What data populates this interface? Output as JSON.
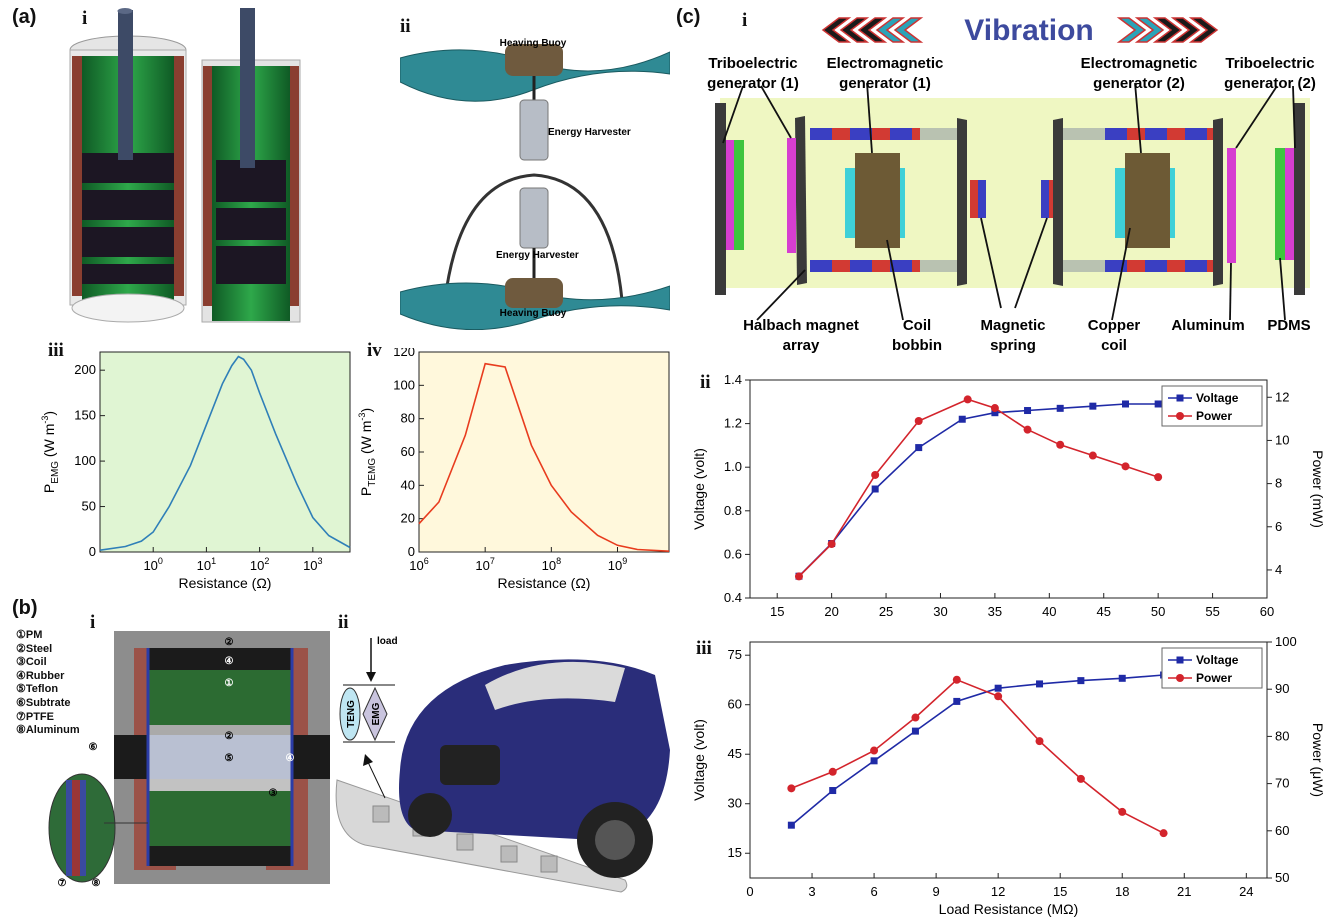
{
  "panels": {
    "a": "(a)",
    "b": "(b)",
    "c": "(c)"
  },
  "subs": {
    "a_i": "i",
    "a_ii": "ii",
    "a_iii": "iii",
    "a_iv": "iv",
    "b_i": "i",
    "b_ii": "ii",
    "c_i": "i",
    "c_ii": "ii",
    "c_iii": "iii"
  },
  "a_ii": {
    "buoy_top": "Heaving Buoy",
    "harv1": "Energy Harvester",
    "harv2": "Energy Harvester",
    "buoy_bottom": "Heaving Buoy"
  },
  "b_legend": [
    "①PM",
    "②Steel",
    "③Coil",
    "④Rubber",
    "⑤Teflon",
    "⑥Subtrate",
    "⑦PTFE",
    "⑧Aluminum"
  ],
  "b_marks": [
    "②",
    "④",
    "①",
    "②",
    "⑤",
    "④",
    "③",
    "⑥",
    "⑦",
    "⑧"
  ],
  "b_ii": {
    "load": "load",
    "teng": "TENG",
    "emg": "EMG"
  },
  "c_i": {
    "vibration": "Vibration",
    "tri1": [
      "Triboelectric",
      "generator (1)"
    ],
    "em1": [
      "Electromagnetic",
      "generator (1)"
    ],
    "em2": [
      "Electromagnetic",
      "generator (2)"
    ],
    "tri2": [
      "Triboelectric",
      "generator (2)"
    ],
    "halbach": [
      "Halbach magnet",
      "array"
    ],
    "bobbin": [
      "Coil",
      "bobbin"
    ],
    "mspring": [
      "Magnetic",
      "spring"
    ],
    "copper": [
      "Copper",
      "coil"
    ],
    "aluminum": "Aluminum",
    "pdms": "PDMS"
  },
  "colors": {
    "emg_bg": "#e0f5d3",
    "temg_bg": "#fff8dc",
    "emg_line": "#2f7fb8",
    "temg_line": "#e83c1e",
    "voltage": "#1f2aa6",
    "power": "#d3242c",
    "ci_bg": "#f1f8c8"
  },
  "chart_data": [
    {
      "id": "a_iii",
      "type": "line",
      "x_scale": "log",
      "ylabel_main": "P",
      "ylabel_sub": "EMG",
      "ylabel_unit": "(W m",
      "ylabel_exp": "-3",
      "ylabel_close": ")",
      "xlabel": "Resistance (Ω)",
      "xlim": [
        0.1,
        5000
      ],
      "ylim": [
        0,
        220
      ],
      "xticks": [
        {
          "v": 1,
          "b": "10",
          "e": "0"
        },
        {
          "v": 10,
          "b": "10",
          "e": "1"
        },
        {
          "v": 100,
          "b": "10",
          "e": "2"
        },
        {
          "v": 1000,
          "b": "10",
          "e": "3"
        }
      ],
      "yticks": [
        "0",
        "50",
        "100",
        "150",
        "200"
      ],
      "x": [
        0.1,
        0.3,
        0.6,
        1,
        2,
        5,
        10,
        20,
        30,
        40,
        50,
        70,
        100,
        200,
        500,
        1000,
        2000,
        5000
      ],
      "y": [
        2,
        6,
        12,
        22,
        50,
        95,
        140,
        185,
        205,
        215,
        212,
        200,
        175,
        130,
        75,
        38,
        18,
        5
      ]
    },
    {
      "id": "a_iv",
      "type": "line",
      "x_scale": "log",
      "ylabel_main": "P",
      "ylabel_sub": "TEMG",
      "ylabel_unit": "(W m",
      "ylabel_exp": "-3",
      "ylabel_close": ")",
      "xlabel": "Resistance (Ω)",
      "xlim": [
        1000000,
        6000000000
      ],
      "ylim": [
        0,
        120
      ],
      "xticks": [
        {
          "v": 1000000,
          "b": "10",
          "e": "6"
        },
        {
          "v": 10000000,
          "b": "10",
          "e": "7"
        },
        {
          "v": 100000000,
          "b": "10",
          "e": "8"
        },
        {
          "v": 1000000000,
          "b": "10",
          "e": "9"
        }
      ],
      "yticks": [
        "0",
        "20",
        "40",
        "60",
        "80",
        "100",
        "120"
      ],
      "x": [
        1000000,
        2000000,
        5000000,
        10000000,
        20000000,
        50000000,
        100000000,
        200000000,
        500000000,
        1000000000,
        2000000000,
        6000000000
      ],
      "y": [
        17,
        30,
        70,
        113,
        111,
        64,
        40,
        24,
        10,
        4,
        1.5,
        0.5
      ]
    },
    {
      "id": "c_ii",
      "type": "line",
      "dual_axis": true,
      "xlabel": "",
      "ylabel": "Voltage (volt)",
      "y2label": "Power (mW)",
      "xlim": [
        12.5,
        60
      ],
      "ylim": [
        0.4,
        1.4
      ],
      "y2lim": [
        2.7,
        12.8
      ],
      "xticks": [
        "15",
        "20",
        "25",
        "30",
        "35",
        "40",
        "45",
        "50",
        "55",
        "60"
      ],
      "yticks": [
        "0.4",
        "0.6",
        "0.8",
        "1.0",
        "1.2",
        "1.4"
      ],
      "y2ticks": [
        "4",
        "6",
        "8",
        "10",
        "12"
      ],
      "series": [
        {
          "name": "Voltage",
          "axis": "left",
          "x": [
            17,
            20,
            24,
            28,
            32,
            35,
            38,
            41,
            44,
            47,
            50
          ],
          "y": [
            0.5,
            0.65,
            0.9,
            1.09,
            1.22,
            1.25,
            1.26,
            1.27,
            1.28,
            1.29,
            1.29
          ]
        },
        {
          "name": "Power",
          "axis": "right",
          "x": [
            17,
            20,
            24,
            28,
            32.5,
            35,
            38,
            41,
            44,
            47,
            50
          ],
          "y": [
            3.7,
            5.2,
            8.4,
            10.9,
            11.9,
            11.5,
            10.5,
            9.8,
            9.3,
            8.8,
            8.3
          ]
        }
      ]
    },
    {
      "id": "c_iii",
      "type": "line",
      "dual_axis": true,
      "xlabel": "Load Resistance (MΩ)",
      "ylabel": "Voltage (volt)",
      "y2label": "Power (μW)",
      "xlim": [
        0,
        25
      ],
      "ylim": [
        7.5,
        79
      ],
      "y2lim": [
        50,
        100
      ],
      "xticks": [
        "0",
        "3",
        "6",
        "9",
        "12",
        "15",
        "18",
        "21",
        "24"
      ],
      "yticks": [
        "15",
        "30",
        "45",
        "60",
        "75"
      ],
      "y2ticks": [
        "50",
        "60",
        "70",
        "80",
        "90",
        "100"
      ],
      "series": [
        {
          "name": "Voltage",
          "axis": "left",
          "x": [
            2,
            4,
            6,
            8,
            10,
            12,
            14,
            16,
            18,
            20
          ],
          "y": [
            23.5,
            34,
            43,
            52,
            61,
            65,
            66.3,
            67.3,
            68,
            69
          ]
        },
        {
          "name": "Power",
          "axis": "right",
          "x": [
            2,
            4,
            6,
            8,
            10,
            12,
            14,
            16,
            18,
            20
          ],
          "y": [
            69,
            72.5,
            77,
            84,
            92,
            88.5,
            79,
            71,
            64,
            59.5
          ]
        }
      ]
    }
  ]
}
